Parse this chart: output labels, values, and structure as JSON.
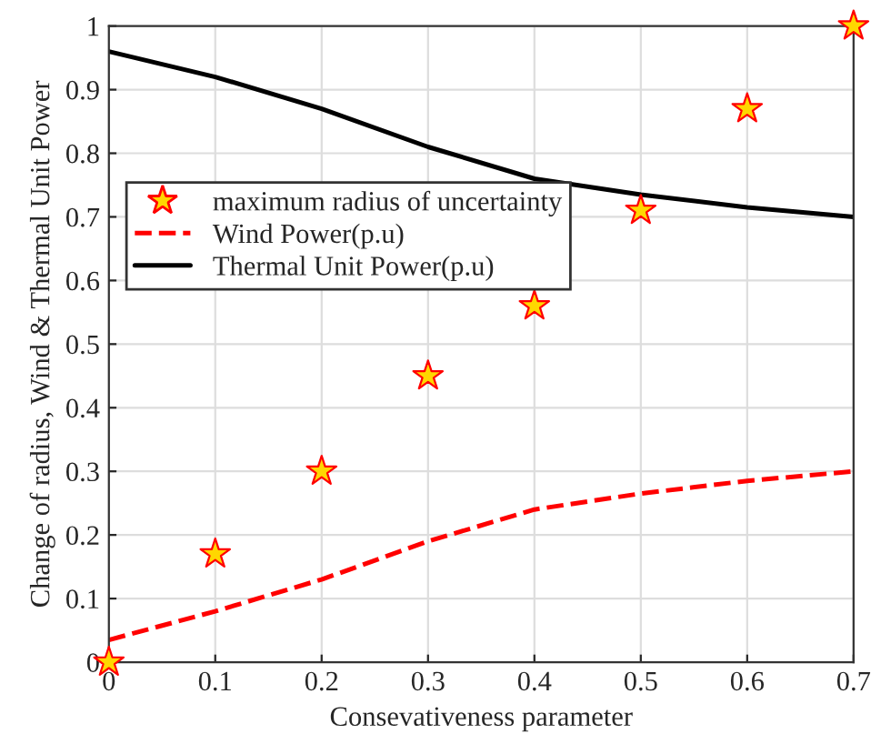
{
  "chart_data": {
    "type": "line",
    "xlabel": "Consevativeness parameter",
    "ylabel": "Change of radius, Wind & Thermal Unit Power",
    "x": [
      0,
      0.1,
      0.2,
      0.3,
      0.4,
      0.5,
      0.6,
      0.7
    ],
    "series": [
      {
        "name": "maximum radius of uncertainty",
        "type": "scatter",
        "marker": "star",
        "color": "#ffd700",
        "values": [
          0,
          0.17,
          0.3,
          0.45,
          0.56,
          0.71,
          0.87,
          1.0
        ]
      },
      {
        "name": "Wind Power(p.u)",
        "line_style": "dashed",
        "color": "#ff0000",
        "values": [
          0.035,
          0.08,
          0.13,
          0.19,
          0.24,
          0.265,
          0.285,
          0.3
        ]
      },
      {
        "name": "Thermal Unit Power(p.u)",
        "line_style": "solid",
        "color": "#000000",
        "values": [
          0.96,
          0.92,
          0.87,
          0.81,
          0.76,
          0.735,
          0.715,
          0.7
        ]
      }
    ],
    "xlim": [
      0,
      0.7
    ],
    "xticks": [
      0,
      0.1,
      0.2,
      0.3,
      0.4,
      0.5,
      0.6,
      0.7
    ],
    "ylim": [
      0,
      1
    ],
    "yticks": [
      0,
      0.1,
      0.2,
      0.3,
      0.4,
      0.5,
      0.6,
      0.7,
      0.8,
      0.9,
      1
    ],
    "grid": true,
    "legend": "left"
  }
}
